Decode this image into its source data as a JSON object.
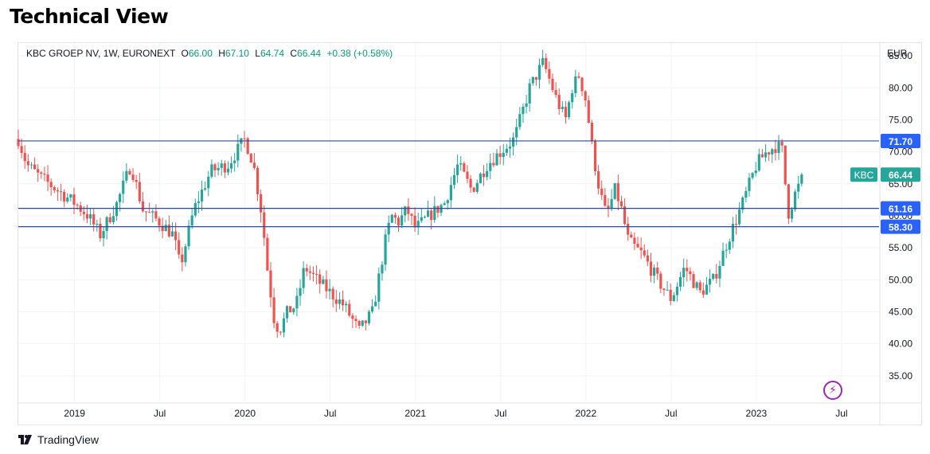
{
  "header": {
    "title": "Technical View"
  },
  "legend": {
    "symbol": "KBC GROEP NV, 1W, EURONEXT",
    "o_label": "O",
    "o_value": "66.00",
    "h_label": "H",
    "h_value": "67.10",
    "l_label": "L",
    "l_value": "64.74",
    "c_label": "C",
    "c_value": "66.44",
    "change": "+0.38 (+0.58%)"
  },
  "branding": {
    "name": "TradingView"
  },
  "colors": {
    "up": "#26a69a",
    "down": "#ef5350",
    "level": "#2a4a9a",
    "badge_blue": "#2962ff",
    "badge_green": "#26a69a",
    "grid": "#f0f3fa"
  },
  "chart_data": {
    "type": "candlestick",
    "currency": "EUR",
    "ylim": [
      31,
      87
    ],
    "y_ticks": [
      35,
      40,
      45,
      50,
      55,
      60,
      65,
      70,
      75,
      80,
      85
    ],
    "y_tick_labels": [
      "35.00",
      "40.00",
      "45.00",
      "50.00",
      "55.00",
      "60.00",
      "65.00",
      "70.00",
      "75.00",
      "80.00",
      "85.00"
    ],
    "x_ticks": [
      {
        "t": 2019.0,
        "label": "2019"
      },
      {
        "t": 2019.5,
        "label": "Jul"
      },
      {
        "t": 2020.0,
        "label": "2020"
      },
      {
        "t": 2020.5,
        "label": "Jul"
      },
      {
        "t": 2021.0,
        "label": "2021"
      },
      {
        "t": 2021.5,
        "label": "Jul"
      },
      {
        "t": 2022.0,
        "label": "2022"
      },
      {
        "t": 2022.5,
        "label": "Jul"
      },
      {
        "t": 2023.0,
        "label": "2023"
      },
      {
        "t": 2023.5,
        "label": "Jul"
      }
    ],
    "x_range": [
      2018.67,
      2023.72
    ],
    "levels": [
      {
        "value": 71.7,
        "label": "71.70"
      },
      {
        "value": 61.16,
        "label": "61.16"
      },
      {
        "value": 58.3,
        "label": "58.30"
      }
    ],
    "last_price": {
      "ticker": "KBC",
      "value": 66.44,
      "label": "66.44"
    },
    "path_t": [
      2018.67,
      2018.72,
      2018.8,
      2018.9,
      2019.0,
      2019.08,
      2019.15,
      2019.25,
      2019.33,
      2019.4,
      2019.5,
      2019.58,
      2019.62,
      2019.7,
      2019.8,
      2019.9,
      2020.0,
      2020.05,
      2020.1,
      2020.13,
      2020.17,
      2020.2,
      2020.25,
      2020.3,
      2020.35,
      2020.42,
      2020.5,
      2020.58,
      2020.67,
      2020.75,
      2020.83,
      2020.86,
      2020.9,
      2020.95,
      2021.0,
      2021.08,
      2021.17,
      2021.25,
      2021.33,
      2021.42,
      2021.5,
      2021.58,
      2021.67,
      2021.75,
      2021.83,
      2021.88,
      2021.92,
      2021.96,
      2022.0,
      2022.04,
      2022.08,
      2022.12,
      2022.17,
      2022.2,
      2022.25,
      2022.33,
      2022.42,
      2022.5,
      2022.58,
      2022.67,
      2022.75,
      2022.83,
      2022.92,
      2023.0,
      2023.06,
      2023.12,
      2023.16,
      2023.18,
      2023.2,
      2023.22,
      2023.28
    ],
    "path_p": [
      72,
      68,
      66,
      64,
      62,
      60,
      57,
      62,
      68,
      61,
      59,
      57,
      52,
      61,
      67,
      68,
      72,
      68,
      60,
      52,
      44,
      42,
      45,
      46,
      52,
      50,
      48,
      46,
      42,
      45,
      57,
      60,
      59,
      61,
      58,
      60,
      62,
      68,
      64,
      68,
      70,
      72,
      80,
      84,
      78,
      75,
      80,
      82,
      78,
      70,
      64,
      60,
      64,
      62,
      56,
      54,
      50,
      47,
      52,
      48,
      50,
      56,
      62,
      68,
      70,
      71,
      70,
      60,
      61,
      63,
      66.44
    ]
  }
}
